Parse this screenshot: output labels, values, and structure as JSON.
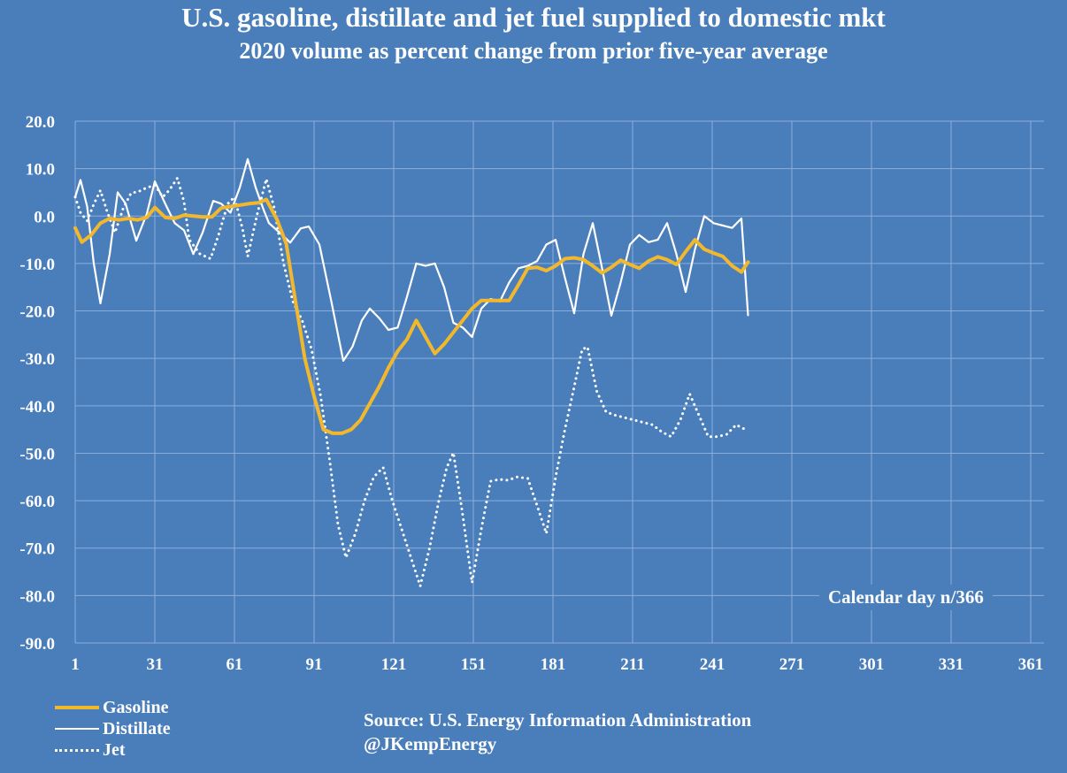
{
  "colors": {
    "background": "#4a7ebb",
    "gridline": "#8aaedb",
    "gasoline": "#f1b82d",
    "distillate": "#ffffff",
    "jet": "#ffffff",
    "text": "#ffffff"
  },
  "chart_data": {
    "type": "line",
    "title": "U.S. gasoline, distillate and jet fuel supplied to domestic mkt",
    "subtitle": "2020 volume as percent change from prior five-year average",
    "xlabel": "Calendar day n/366",
    "ylabel": "",
    "xlim": [
      1,
      366
    ],
    "ylim": [
      -90,
      20
    ],
    "grid": true,
    "legend_position": "bottom-left",
    "x_ticks": [
      1,
      31,
      61,
      91,
      121,
      151,
      181,
      211,
      241,
      271,
      301,
      331,
      361
    ],
    "x_tick_labels": [
      "1",
      "31",
      "61",
      "91",
      "121",
      "151",
      "181",
      "211",
      "241",
      "271",
      "301",
      "331",
      "361"
    ],
    "y_ticks": [
      20,
      10,
      0,
      -10,
      -20,
      -30,
      -40,
      -50,
      -60,
      -70,
      -80,
      -90
    ],
    "y_tick_labels": [
      "20.0",
      "10.0",
      "0.0",
      "-10.0",
      "-20.0",
      "-30.0",
      "-40.0",
      "-50.0",
      "-60.0",
      "-70.0",
      "-80.0",
      "-90.0"
    ],
    "series": [
      {
        "name": "Gasoline",
        "style": "solid-thick",
        "x": [
          1,
          3.5,
          7,
          10.5,
          14,
          17.5,
          21,
          24.5,
          28,
          31,
          35,
          38.5,
          42,
          45.5,
          49,
          52.5,
          56,
          59.5,
          63,
          66.5,
          70,
          73,
          77,
          80.5,
          84,
          87.5,
          91,
          94.5,
          98,
          101.5,
          105,
          108.5,
          112,
          115.5,
          119,
          122.5,
          126,
          129.5,
          133,
          136.5,
          140,
          143.5,
          147,
          150.5,
          154,
          157.5,
          161,
          164.5,
          168,
          171.5,
          175,
          178.5,
          182,
          185.5,
          189,
          192.5,
          196,
          199.5,
          203,
          206.5,
          210,
          213.5,
          217,
          220.5,
          224,
          227.5,
          231,
          234.5,
          238,
          241.5,
          245,
          248.5,
          252,
          254.5
        ],
        "values": [
          -2.5,
          -5.5,
          -4,
          -1.5,
          -0.5,
          -0.8,
          -0.5,
          -0.8,
          -0.3,
          1.8,
          -0.3,
          -0.5,
          0.2,
          0,
          -0.2,
          -0.2,
          1.7,
          2,
          2.3,
          2.6,
          2.8,
          3.5,
          -0.7,
          -5.8,
          -18,
          -30,
          -38,
          -45,
          -45.8,
          -45.8,
          -45,
          -43,
          -39.5,
          -36,
          -32,
          -28.5,
          -26,
          -22,
          -25.5,
          -29,
          -27,
          -24.5,
          -22,
          -19.5,
          -17.8,
          -17.8,
          -17.8,
          -17.8,
          -14.5,
          -11,
          -10.8,
          -11.5,
          -10.5,
          -9,
          -8.8,
          -9.2,
          -10.5,
          -12,
          -10.8,
          -9.3,
          -10.2,
          -11,
          -9.5,
          -8.6,
          -9.2,
          -10.2,
          -7.5,
          -5,
          -7,
          -7.8,
          -8.5,
          -10.5,
          -11.8,
          -9.7
        ]
      },
      {
        "name": "Distillate",
        "style": "solid",
        "x": [
          1,
          3,
          5.5,
          8,
          10.5,
          14,
          17,
          20,
          24,
          28,
          31,
          35,
          38.5,
          42,
          45.5,
          49,
          53,
          56,
          59.5,
          63,
          66,
          69,
          72,
          74,
          79,
          82,
          86,
          89,
          93,
          97.5,
          102,
          105.5,
          109,
          112,
          115.5,
          119,
          122.5,
          126,
          129.5,
          133,
          136.5,
          140,
          143.5,
          147,
          150.5,
          154,
          157.5,
          161,
          164.5,
          168,
          171.5,
          175,
          178.5,
          182,
          185.5,
          189,
          192.5,
          196,
          199.5,
          203,
          206.5,
          210,
          213.5,
          217,
          220.5,
          224,
          227.5,
          231,
          234.5,
          238,
          241.5,
          245,
          248.5,
          252,
          254.5
        ],
        "values": [
          4,
          7.6,
          2,
          -10,
          -18.4,
          -8,
          5,
          2.6,
          -5.2,
          0.5,
          7.3,
          2.5,
          -1.5,
          -3,
          -8,
          -3.5,
          3.2,
          2.6,
          0.7,
          6,
          12,
          6,
          1.3,
          -1.5,
          -4,
          -5.6,
          -2.6,
          -2.2,
          -6,
          -18,
          -30.5,
          -27.5,
          -22,
          -19.5,
          -21.5,
          -24,
          -23.5,
          -17,
          -10,
          -10.5,
          -10,
          -15,
          -22.5,
          -23.5,
          -25.5,
          -19.5,
          -17.5,
          -18,
          -14,
          -11,
          -10.5,
          -9.5,
          -6,
          -5,
          -13,
          -20.5,
          -8,
          -1.5,
          -11,
          -21,
          -14,
          -6,
          -4,
          -5.5,
          -5,
          -1.5,
          -8,
          -16,
          -7,
          0,
          -1.5,
          -2,
          -2.5,
          -0.5,
          -20.9
        ]
      },
      {
        "name": "Jet",
        "style": "dotted",
        "x": [
          1,
          3,
          5.5,
          8,
          10.5,
          13,
          16,
          19,
          22,
          25,
          28,
          31,
          34,
          36.5,
          39.5,
          42,
          44,
          48,
          52,
          55,
          58.5,
          61,
          64,
          66,
          69.5,
          73,
          76,
          79.5,
          83,
          86.5,
          90,
          93.5,
          97,
          100,
          103,
          106.5,
          110,
          113.5,
          117,
          120.5,
          124,
          127.5,
          131,
          134.5,
          138,
          141,
          143.5,
          147,
          150.5,
          154,
          157.5,
          161,
          164,
          167.5,
          171.5,
          175,
          178.5,
          182,
          185.5,
          189,
          192,
          194,
          197.5,
          201,
          204.5,
          208,
          211.5,
          215,
          218.5,
          222,
          225.5,
          229,
          232.5,
          236,
          239.5,
          243,
          246.5,
          250,
          254.5
        ],
        "values": [
          4,
          0.7,
          -1,
          2.5,
          5.4,
          1,
          -3.5,
          1.5,
          4.8,
          5.2,
          6,
          6.5,
          4,
          5.5,
          8,
          3,
          -5,
          -8,
          -9,
          -4,
          2.6,
          4,
          -2.6,
          -8.5,
          0.2,
          7.8,
          1.7,
          -10,
          -18,
          -22,
          -28,
          -38,
          -52,
          -65,
          -72,
          -67,
          -60,
          -55,
          -53,
          -60,
          -66,
          -72,
          -78,
          -70,
          -60,
          -53,
          -49.9,
          -63,
          -77.3,
          -66,
          -55.9,
          -55.5,
          -55.7,
          -55,
          -55.3,
          -61,
          -66.9,
          -55,
          -45,
          -36,
          -28.1,
          -27.6,
          -36.9,
          -41.3,
          -42,
          -42.5,
          -43,
          -43.5,
          -44,
          -45.5,
          -46.5,
          -43,
          -37.5,
          -42,
          -46.5,
          -46.5,
          -46,
          -44,
          -45.3
        ]
      }
    ],
    "annotations": [
      "Calendar day n/366"
    ]
  },
  "legend": {
    "items": [
      {
        "label": "Gasoline"
      },
      {
        "label": "Distillate"
      },
      {
        "label": "Jet"
      }
    ]
  },
  "source": {
    "line1": "Source: U.S. Energy Information Administration",
    "line2": "@JKempEnergy"
  }
}
